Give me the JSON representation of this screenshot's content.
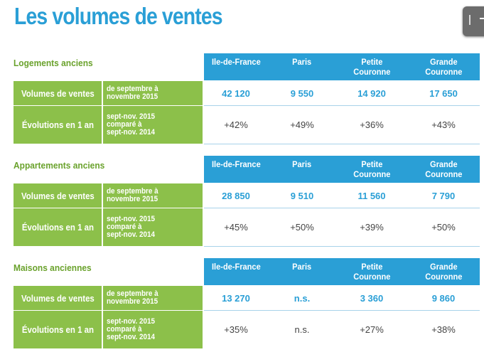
{
  "title": "Les volumes de ventes",
  "colors": {
    "accent_blue": "#2a9fd6",
    "accent_green": "#8cc04a",
    "title_green": "#6aa22c"
  },
  "regions": [
    "Ile-de-France",
    "Paris",
    "Petite\nCouronne",
    "Grande\nCouronne"
  ],
  "row_labels": {
    "volumes": "Volumes de ventes",
    "evolutions": "Évolutions en 1 an"
  },
  "row_subs": {
    "volumes": "de septembre à\nnovembre 2015",
    "evolutions": "sept-nov. 2015\ncomparé à\nsept-nov. 2014"
  },
  "sections": [
    {
      "title": "Logements anciens",
      "volumes": [
        "42 120",
        "9 550",
        "14 920",
        "17 650"
      ],
      "evolutions": [
        "+42%",
        "+49%",
        "+36%",
        "+43%"
      ]
    },
    {
      "title": "Appartements anciens",
      "volumes": [
        "28 850",
        "9 510",
        "11 560",
        "7 790"
      ],
      "evolutions": [
        "+45%",
        "+50%",
        "+39%",
        "+50%"
      ]
    },
    {
      "title": "Maisons anciennes",
      "volumes": [
        "13 270",
        "n.s.",
        "3 360",
        "9 860"
      ],
      "evolutions": [
        "+35%",
        "n.s.",
        "+27%",
        "+38%"
      ]
    }
  ]
}
